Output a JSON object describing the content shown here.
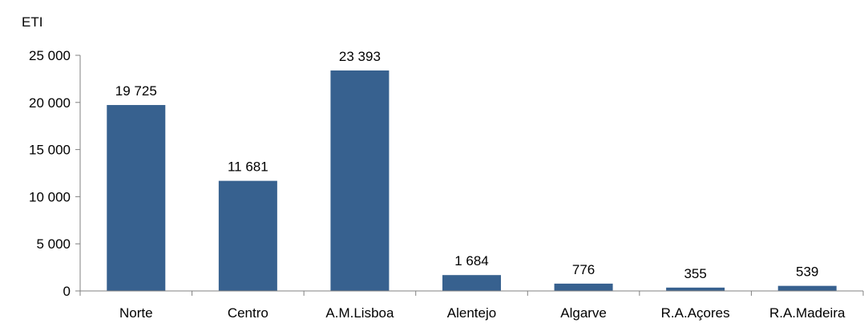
{
  "chart_data": {
    "type": "bar",
    "ylabel": "ETI",
    "xlabel": "",
    "categories": [
      "Norte",
      "Centro",
      "A.M.Lisboa",
      "Alentejo",
      "Algarve",
      "R.A.Açores",
      "R.A.Madeira"
    ],
    "values": [
      19725,
      11681,
      23393,
      1684,
      776,
      355,
      539
    ],
    "value_labels": [
      "19 725",
      "11 681",
      "23 393",
      "1 684",
      "776",
      "355",
      "539"
    ],
    "ylim": [
      0,
      25000
    ],
    "yticks": [
      0,
      5000,
      10000,
      15000,
      20000,
      25000
    ],
    "ytick_labels": [
      "0",
      "5 000",
      "10 000",
      "15 000",
      "20 000",
      "25 000"
    ],
    "grid": false,
    "legend": "none",
    "bar_color": "#37618F",
    "axis_color": "#808080"
  }
}
